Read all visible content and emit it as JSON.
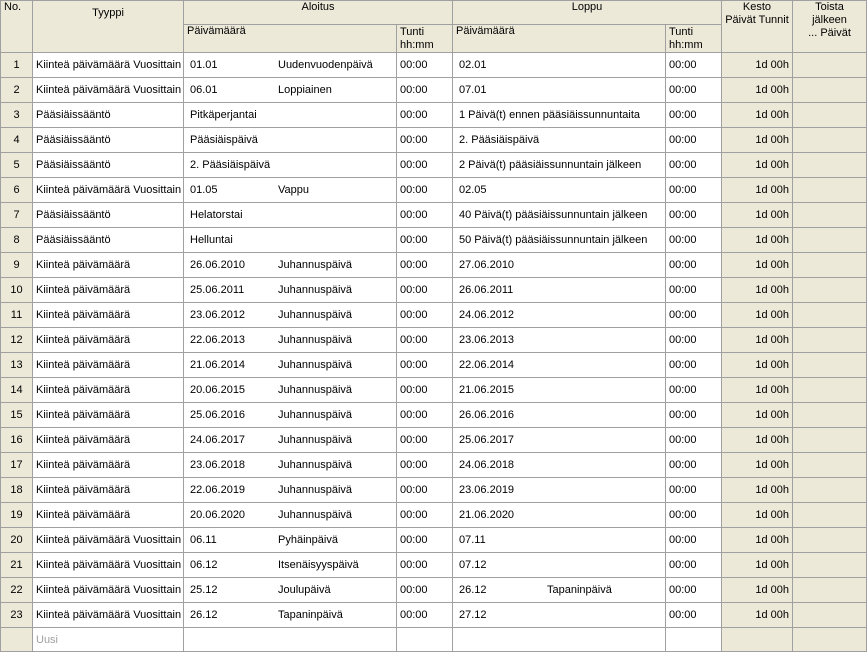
{
  "headers": {
    "no": "No.",
    "tyyppi": "Tyyppi",
    "aloitus": "Aloitus",
    "loppu": "Loppu",
    "paivamaara": "Päivämäärä",
    "tunti": "Tunti",
    "hhmm": "hh:mm",
    "kesto_line1": "Kesto",
    "kesto_line2": "Päivät Tunnit",
    "toista_line1": "Toista",
    "toista_line2": "jälkeen",
    "toista_line3": "... Päivät"
  },
  "rows": [
    {
      "no": "1",
      "type": "Kiinteä päivämäärä Vuosittain",
      "start_date": "01.01",
      "start_name": "Uudenvuodenpäivä",
      "start_time": "00:00",
      "end_date": "02.01",
      "end_name": "",
      "end_time": "00:00",
      "duration": "1d 00h"
    },
    {
      "no": "2",
      "type": "Kiinteä päivämäärä Vuosittain",
      "start_date": "06.01",
      "start_name": "Loppiainen",
      "start_time": "00:00",
      "end_date": "07.01",
      "end_name": "",
      "end_time": "00:00",
      "duration": "1d 00h"
    },
    {
      "no": "3",
      "type": "Pääsiäissääntö",
      "start_date": "Pitkäperjantai",
      "start_name": "",
      "start_time": "00:00",
      "end_date": "1 Päivä(t) ennen pääsiäissunnuntaita",
      "end_name": "",
      "end_time": "00:00",
      "duration": "1d 00h"
    },
    {
      "no": "4",
      "type": "Pääsiäissääntö",
      "start_date": "Pääsiäispäivä",
      "start_name": "",
      "start_time": "00:00",
      "end_date": "2. Pääsiäispäivä",
      "end_name": "",
      "end_time": "00:00",
      "duration": "1d 00h"
    },
    {
      "no": "5",
      "type": "Pääsiäissääntö",
      "start_date": "2. Pääsiäispäivä",
      "start_name": "",
      "start_time": "00:00",
      "end_date": "2 Päivä(t) pääsiäissunnuntain jälkeen",
      "end_name": "",
      "end_time": "00:00",
      "duration": "1d 00h"
    },
    {
      "no": "6",
      "type": "Kiinteä päivämäärä Vuosittain",
      "start_date": "01.05",
      "start_name": "Vappu",
      "start_time": "00:00",
      "end_date": "02.05",
      "end_name": "",
      "end_time": "00:00",
      "duration": "1d 00h"
    },
    {
      "no": "7",
      "type": "Pääsiäissääntö",
      "start_date": "Helatorstai",
      "start_name": "",
      "start_time": "00:00",
      "end_date": "40 Päivä(t) pääsiäissunnuntain jälkeen",
      "end_name": "",
      "end_time": "00:00",
      "duration": "1d 00h"
    },
    {
      "no": "8",
      "type": "Pääsiäissääntö",
      "start_date": "Helluntai",
      "start_name": "",
      "start_time": "00:00",
      "end_date": "50 Päivä(t) pääsiäissunnuntain jälkeen",
      "end_name": "",
      "end_time": "00:00",
      "duration": "1d 00h"
    },
    {
      "no": "9",
      "type": "Kiinteä päivämäärä",
      "start_date": "26.06.2010",
      "start_name": "Juhannuspäivä",
      "start_time": "00:00",
      "end_date": "27.06.2010",
      "end_name": "",
      "end_time": "00:00",
      "duration": "1d 00h"
    },
    {
      "no": "10",
      "type": "Kiinteä päivämäärä",
      "start_date": "25.06.2011",
      "start_name": "Juhannuspäivä",
      "start_time": "00:00",
      "end_date": "26.06.2011",
      "end_name": "",
      "end_time": "00:00",
      "duration": "1d 00h"
    },
    {
      "no": "11",
      "type": "Kiinteä päivämäärä",
      "start_date": "23.06.2012",
      "start_name": "Juhannuspäivä",
      "start_time": "00:00",
      "end_date": "24.06.2012",
      "end_name": "",
      "end_time": "00:00",
      "duration": "1d 00h"
    },
    {
      "no": "12",
      "type": "Kiinteä päivämäärä",
      "start_date": "22.06.2013",
      "start_name": "Juhannuspäivä",
      "start_time": "00:00",
      "end_date": "23.06.2013",
      "end_name": "",
      "end_time": "00:00",
      "duration": "1d 00h"
    },
    {
      "no": "13",
      "type": "Kiinteä päivämäärä",
      "start_date": "21.06.2014",
      "start_name": "Juhannuspäivä",
      "start_time": "00:00",
      "end_date": "22.06.2014",
      "end_name": "",
      "end_time": "00:00",
      "duration": "1d 00h"
    },
    {
      "no": "14",
      "type": "Kiinteä päivämäärä",
      "start_date": "20.06.2015",
      "start_name": "Juhannuspäivä",
      "start_time": "00:00",
      "end_date": "21.06.2015",
      "end_name": "",
      "end_time": "00:00",
      "duration": "1d 00h"
    },
    {
      "no": "15",
      "type": "Kiinteä päivämäärä",
      "start_date": "25.06.2016",
      "start_name": "Juhannuspäivä",
      "start_time": "00:00",
      "end_date": "26.06.2016",
      "end_name": "",
      "end_time": "00:00",
      "duration": "1d 00h"
    },
    {
      "no": "16",
      "type": "Kiinteä päivämäärä",
      "start_date": "24.06.2017",
      "start_name": "Juhannuspäivä",
      "start_time": "00:00",
      "end_date": "25.06.2017",
      "end_name": "",
      "end_time": "00:00",
      "duration": "1d 00h"
    },
    {
      "no": "17",
      "type": "Kiinteä päivämäärä",
      "start_date": "23.06.2018",
      "start_name": "Juhannuspäivä",
      "start_time": "00:00",
      "end_date": "24.06.2018",
      "end_name": "",
      "end_time": "00:00",
      "duration": "1d 00h"
    },
    {
      "no": "18",
      "type": "Kiinteä päivämäärä",
      "start_date": "22.06.2019",
      "start_name": "Juhannuspäivä",
      "start_time": "00:00",
      "end_date": "23.06.2019",
      "end_name": "",
      "end_time": "00:00",
      "duration": "1d 00h"
    },
    {
      "no": "19",
      "type": "Kiinteä päivämäärä",
      "start_date": "20.06.2020",
      "start_name": "Juhannuspäivä",
      "start_time": "00:00",
      "end_date": "21.06.2020",
      "end_name": "",
      "end_time": "00:00",
      "duration": "1d 00h"
    },
    {
      "no": "20",
      "type": "Kiinteä päivämäärä Vuosittain",
      "start_date": "06.11",
      "start_name": "Pyhäinpäivä",
      "start_time": "00:00",
      "end_date": "07.11",
      "end_name": "",
      "end_time": "00:00",
      "duration": "1d 00h"
    },
    {
      "no": "21",
      "type": "Kiinteä päivämäärä Vuosittain",
      "start_date": "06.12",
      "start_name": "Itsenäisyyspäivä",
      "start_time": "00:00",
      "end_date": "07.12",
      "end_name": "",
      "end_time": "00:00",
      "duration": "1d 00h"
    },
    {
      "no": "22",
      "type": "Kiinteä päivämäärä Vuosittain",
      "start_date": "25.12",
      "start_name": "Joulupäivä",
      "start_time": "00:00",
      "end_date": "26.12",
      "end_name": "Tapaninpäivä",
      "end_time": "00:00",
      "duration": "1d 00h"
    },
    {
      "no": "23",
      "type": "Kiinteä päivämäärä Vuosittain",
      "start_date": "26.12",
      "start_name": "Tapaninpäivä",
      "start_time": "00:00",
      "end_date": "27.12",
      "end_name": "",
      "end_time": "00:00",
      "duration": "1d 00h"
    }
  ],
  "new_row_label": "Uusi"
}
